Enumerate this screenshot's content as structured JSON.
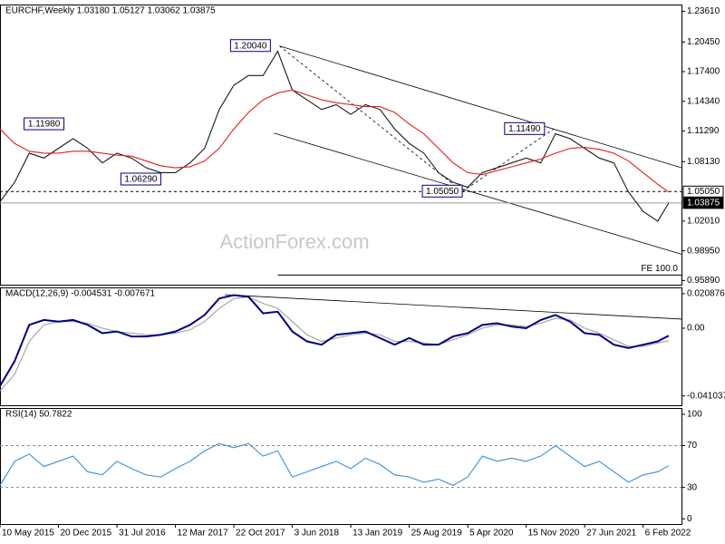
{
  "chart_data": [
    {
      "type": "line",
      "title": "EURCHF,Weekly  1.03180 1.05127 1.03062 1.03875",
      "watermark": "ActionForex.com",
      "x": [
        0,
        8,
        16,
        24,
        32,
        40,
        48,
        56,
        64,
        72,
        80,
        88,
        96,
        104,
        112,
        120,
        128,
        136,
        144,
        152,
        160,
        168,
        176,
        184,
        192,
        200,
        208,
        216,
        224,
        232,
        240,
        248,
        256,
        264,
        272,
        280,
        288,
        296,
        304,
        312,
        320,
        328,
        336,
        344,
        352,
        360,
        366
      ],
      "xlim": [
        0,
        373
      ],
      "ylim": [
        0.9546,
        1.2431
      ],
      "yticks": [
        {
          "value": 1.2361,
          "label": "1.23610"
        },
        {
          "value": 1.2045,
          "label": "1.20450"
        },
        {
          "value": 1.174,
          "label": "1.17400"
        },
        {
          "value": 1.1434,
          "label": "1.14340"
        },
        {
          "value": 1.1129,
          "label": "1.11290"
        },
        {
          "value": 1.0813,
          "label": "1.08130"
        },
        {
          "value": 1.0201,
          "label": "1.02010"
        },
        {
          "value": 0.9895,
          "label": "0.98950"
        },
        {
          "value": 0.9589,
          "label": "0.95890"
        }
      ],
      "series": [
        {
          "color": "#1a1a1a",
          "values": [
            1.04,
            1.06,
            1.09,
            1.085,
            1.095,
            1.105,
            1.095,
            1.08,
            1.09,
            1.085,
            1.075,
            1.07,
            1.07,
            1.08,
            1.095,
            1.135,
            1.16,
            1.17,
            1.17,
            1.195,
            1.155,
            1.145,
            1.135,
            1.14,
            1.13,
            1.14,
            1.135,
            1.115,
            1.1,
            1.09,
            1.07,
            1.06,
            1.055,
            1.07,
            1.075,
            1.08,
            1.085,
            1.08,
            1.11,
            1.105,
            1.095,
            1.085,
            1.08,
            1.05,
            1.03,
            1.02,
            1.03875
          ]
        },
        {
          "color": "#e0201b",
          "values": [
            1.115,
            1.1,
            1.092,
            1.09,
            1.09,
            1.092,
            1.092,
            1.09,
            1.088,
            1.087,
            1.082,
            1.077,
            1.075,
            1.076,
            1.082,
            1.095,
            1.115,
            1.132,
            1.145,
            1.152,
            1.155,
            1.15,
            1.145,
            1.142,
            1.14,
            1.138,
            1.138,
            1.132,
            1.12,
            1.11,
            1.095,
            1.08,
            1.07,
            1.068,
            1.072,
            1.076,
            1.08,
            1.084,
            1.09,
            1.095,
            1.096,
            1.094,
            1.09,
            1.082,
            1.07,
            1.058,
            1.05
          ]
        }
      ],
      "annotations": [
        {
          "x": 148,
          "value": 1.2004,
          "label": "1.20040"
        },
        {
          "x": 35,
          "value": 1.1198,
          "label": "1.11980"
        },
        {
          "x": 88,
          "value": 1.0629,
          "label": "1.06290"
        },
        {
          "x": 253,
          "value": 1.0505,
          "label": "1.05050"
        },
        {
          "x": 298,
          "value": 1.1149,
          "label": "1.11490"
        }
      ],
      "levels": [
        {
          "value": 1.0505,
          "label": "1.05050",
          "style": "dashed"
        },
        {
          "value": 1.03875,
          "label": "1.03875",
          "style": "solid"
        }
      ],
      "projection": {
        "value": 0.9645,
        "label": "FE 100.0",
        "x_start": 152
      },
      "trendlines": [
        {
          "x": [
            153,
            373
          ],
          "y": [
            1.2004,
            1.075
          ],
          "style": "solid"
        },
        {
          "x": [
            150,
            373
          ],
          "y": [
            1.1106,
            0.986
          ],
          "style": "solid"
        },
        {
          "x": [
            153,
            253
          ],
          "y": [
            1.2004,
            1.0505
          ],
          "style": "dashed"
        },
        {
          "x": [
            253,
            303
          ],
          "y": [
            1.0505,
            1.1149
          ],
          "style": "dashed"
        }
      ]
    },
    {
      "type": "line",
      "title": "MACD(12,26,9) -0.004531 -0.007671",
      "x": [
        0,
        8,
        16,
        24,
        32,
        40,
        48,
        56,
        64,
        72,
        80,
        88,
        96,
        104,
        112,
        120,
        128,
        136,
        144,
        152,
        160,
        168,
        176,
        184,
        192,
        200,
        208,
        216,
        224,
        232,
        240,
        248,
        256,
        264,
        272,
        280,
        288,
        296,
        304,
        312,
        320,
        328,
        336,
        344,
        352,
        360,
        366
      ],
      "xlim": [
        0,
        373
      ],
      "ylim": [
        -0.0467,
        0.0247
      ],
      "yticks": [
        0.020876,
        {
          "value": 0,
          "label": "0.00"
        },
        -0.041037
      ],
      "series": [
        {
          "color": "#a0a0a0",
          "values": [
            -0.038,
            -0.028,
            -0.008,
            0.002,
            0.004,
            0.004,
            0.003,
            0.0,
            -0.002,
            -0.003,
            -0.004,
            -0.004,
            -0.003,
            -0.001,
            0.004,
            0.012,
            0.018,
            0.019,
            0.015,
            0.012,
            0.004,
            -0.004,
            -0.008,
            -0.006,
            -0.004,
            -0.003,
            -0.004,
            -0.008,
            -0.008,
            -0.009,
            -0.01,
            -0.007,
            -0.004,
            0.0,
            0.002,
            0.002,
            0.001,
            0.003,
            0.006,
            0.005,
            0.0,
            -0.003,
            -0.007,
            -0.011,
            -0.011,
            -0.009,
            -0.007671
          ]
        },
        {
          "color": "#000080",
          "values": [
            -0.035,
            -0.02,
            0.002,
            0.005,
            0.004,
            0.005,
            0.002,
            -0.003,
            -0.002,
            -0.005,
            -0.005,
            -0.004,
            -0.002,
            0.002,
            0.008,
            0.018,
            0.02,
            0.019,
            0.009,
            0.01,
            -0.002,
            -0.008,
            -0.01,
            -0.004,
            -0.003,
            -0.002,
            -0.006,
            -0.01,
            -0.006,
            -0.01,
            -0.01,
            -0.005,
            -0.003,
            0.002,
            0.003,
            0.001,
            0.0,
            0.005,
            0.008,
            0.004,
            -0.003,
            -0.004,
            -0.01,
            -0.012,
            -0.01,
            -0.008,
            -0.004531
          ]
        }
      ],
      "trendlines": [
        {
          "x": [
            123,
            373
          ],
          "y": [
            0.0203,
            0.0055
          ],
          "style": "solid"
        }
      ]
    },
    {
      "type": "line",
      "title": "RSI(14) 50.7822",
      "x": [
        0,
        8,
        16,
        24,
        32,
        40,
        48,
        56,
        64,
        72,
        80,
        88,
        96,
        104,
        112,
        120,
        128,
        136,
        144,
        152,
        160,
        168,
        176,
        184,
        192,
        200,
        208,
        216,
        224,
        232,
        240,
        248,
        256,
        264,
        272,
        280,
        288,
        296,
        304,
        312,
        320,
        328,
        336,
        344,
        352,
        360,
        366
      ],
      "xlim": [
        0,
        373
      ],
      "ylim": [
        -5,
        106
      ],
      "yticks": [
        100,
        70,
        30,
        0
      ],
      "hlines": [
        70,
        30
      ],
      "series": [
        {
          "color": "#3c8fd6",
          "values": [
            32,
            55,
            62,
            50,
            55,
            60,
            45,
            42,
            55,
            48,
            42,
            40,
            48,
            55,
            65,
            72,
            68,
            72,
            60,
            65,
            40,
            45,
            50,
            55,
            48,
            58,
            52,
            42,
            40,
            35,
            38,
            32,
            40,
            60,
            55,
            58,
            55,
            60,
            70,
            60,
            50,
            55,
            45,
            35,
            42,
            45,
            50.7822
          ]
        }
      ],
      "xticks": [
        {
          "value": 0,
          "label": "10 May 2015"
        },
        {
          "value": 32,
          "label": "20 Dec 2015"
        },
        {
          "value": 64,
          "label": "31 Jul 2016"
        },
        {
          "value": 96,
          "label": "12 Mar 2017"
        },
        {
          "value": 128,
          "label": "22 Oct 2017"
        },
        {
          "value": 160,
          "label": "3 Jun 2018"
        },
        {
          "value": 192,
          "label": "13 Jan 2019"
        },
        {
          "value": 224,
          "label": "25 Aug 2019"
        },
        {
          "value": 256,
          "label": "5 Apr 2020"
        },
        {
          "value": 288,
          "label": "15 Nov 2020"
        },
        {
          "value": 320,
          "label": "27 Jun 2021"
        },
        {
          "value": 352,
          "label": "6 Feb 2022"
        }
      ]
    }
  ]
}
